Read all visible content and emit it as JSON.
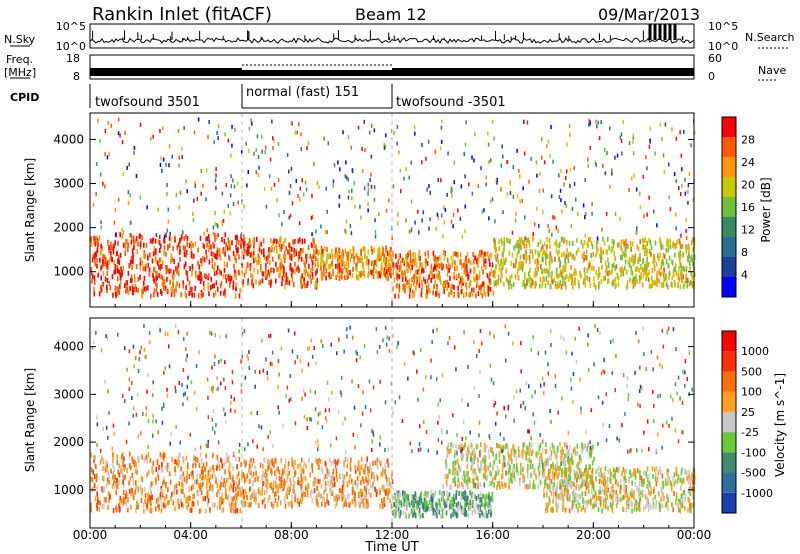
{
  "header": {
    "station": "Rankin Inlet (fitACF)",
    "beam": "Beam 12",
    "date": "09/Mar/2013"
  },
  "sky_panel": {
    "left_label": "N.Sky",
    "right_label": "N.Search",
    "left_ticks": [
      "10^5",
      "10^0"
    ],
    "right_ticks": [
      "10^5",
      "10^0"
    ]
  },
  "freq_panel": {
    "left_label_line1": "Freq.",
    "left_label_line2": "[MHz]",
    "left_ticks": [
      "18",
      "8"
    ],
    "right_label": "Nave",
    "right_ticks": [
      "60",
      "0"
    ]
  },
  "cpid_panel": {
    "label": "CPID",
    "segments": [
      {
        "name": "twofsound 3501",
        "start": 0,
        "end": 6
      },
      {
        "name": "normal (fast) 151",
        "start": 6,
        "end": 12
      },
      {
        "name": "twofsound -3501",
        "start": 12,
        "end": 24
      }
    ]
  },
  "power_panel": {
    "ylabel": "Slant Range [km]",
    "yticks": [
      "4000",
      "3000",
      "2000",
      "1000"
    ],
    "colorbar_label": "Power [dB]",
    "colorbar_ticks": [
      "28",
      "24",
      "20",
      "16",
      "12",
      "8",
      "4"
    ],
    "colors": [
      "#0000ff",
      "#1c3f9e",
      "#2a6f8f",
      "#3a8a60",
      "#6cc040",
      "#c8c800",
      "#ff9900",
      "#ff5a00",
      "#ff0000"
    ]
  },
  "velocity_panel": {
    "ylabel": "Slant Range [km]",
    "yticks": [
      "4000",
      "3000",
      "2000",
      "1000"
    ],
    "colorbar_label": "Velocity [m s^-1]",
    "colorbar_ticks": [
      "1000",
      "500",
      "100",
      "25",
      "-25",
      "-100",
      "-500",
      "-1000"
    ],
    "colors": [
      "#1a3fb0",
      "#2e6fa0",
      "#3f8a70",
      "#66cc33",
      "#c8c8c8",
      "#ffa020",
      "#ff7000",
      "#ff3000",
      "#ff0000"
    ]
  },
  "xaxis": {
    "ticks": [
      "00:00",
      "04:00",
      "08:00",
      "12:00",
      "16:00",
      "20:00",
      "00:00"
    ],
    "label": "Time UT"
  },
  "chart_data": {
    "type": "heatmap",
    "title": "Rankin Inlet (fitACF)  Beam 12  09/Mar/2013",
    "xlabel": "Time UT",
    "ylabel": "Slant Range [km]",
    "xlim": [
      0,
      24
    ],
    "ylim": [
      200,
      4600
    ],
    "x_tick_hours": [
      0,
      4,
      8,
      12,
      16,
      20,
      24
    ],
    "series": [
      {
        "name": "Power [dB]",
        "zlim": [
          0,
          32
        ],
        "scatter_regions": [
          {
            "t0": 0,
            "t1": 6,
            "r0": 500,
            "r1": 1900,
            "level": 28
          },
          {
            "t0": 6,
            "t1": 9,
            "r0": 700,
            "r1": 1800,
            "level": 26
          },
          {
            "t0": 9,
            "t1": 12,
            "r0": 900,
            "r1": 1600,
            "level": 24
          },
          {
            "t0": 12,
            "t1": 16,
            "r0": 500,
            "r1": 1500,
            "level": 26
          },
          {
            "t0": 16,
            "t1": 24,
            "r0": 700,
            "r1": 1800,
            "level": 20
          }
        ]
      },
      {
        "name": "Velocity [m s^-1]",
        "zlim": [
          -1000,
          1000
        ],
        "scatter_regions": [
          {
            "t0": 0,
            "t1": 6,
            "r0": 600,
            "r1": 1800,
            "level": 300
          },
          {
            "t0": 6,
            "t1": 12,
            "r0": 700,
            "r1": 1700,
            "level": 250
          },
          {
            "t0": 12,
            "t1": 16,
            "r0": 500,
            "r1": 1000,
            "level": -300
          },
          {
            "t0": 14,
            "t1": 20,
            "r0": 1100,
            "r1": 2000,
            "level": 0
          },
          {
            "t0": 18,
            "t1": 24,
            "r0": 600,
            "r1": 1500,
            "level": 60
          }
        ]
      }
    ]
  }
}
